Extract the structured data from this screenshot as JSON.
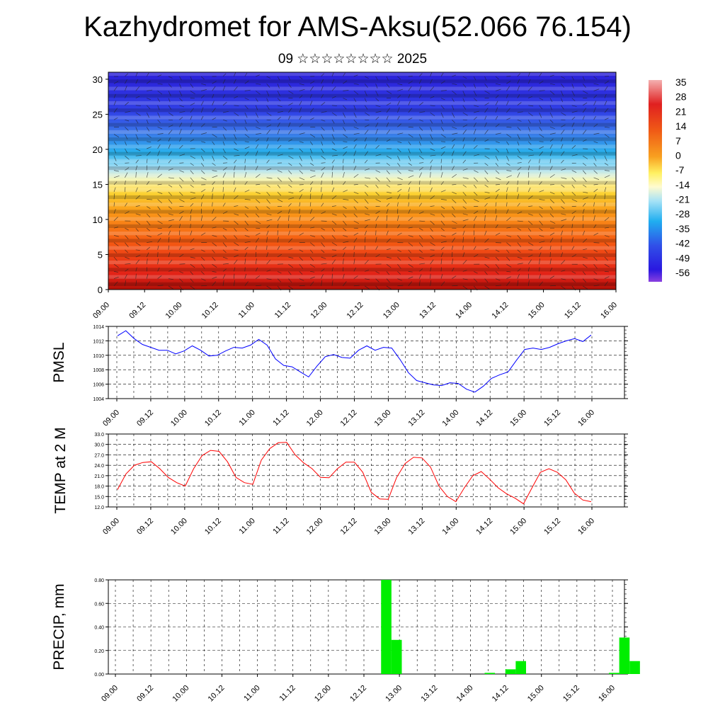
{
  "title": "Kazhydromet for AMS-Aksu(52.066 76.154)",
  "subtitle": "09 ☆☆☆☆☆☆☆☆ 2025",
  "chart_data": [
    {
      "type": "heatmap",
      "name": "cross-section",
      "x_tick_labels": [
        "09.00",
        "09.12",
        "10.00",
        "10.12",
        "11.00",
        "11.12",
        "12.00",
        "12.12",
        "13.00",
        "13.12",
        "14.00",
        "14.12",
        "15.00",
        "15.12",
        "16.00"
      ],
      "y_ticks": [
        0,
        5,
        10,
        15,
        20,
        25,
        30
      ],
      "ylim": [
        0,
        31
      ],
      "colorbar_labels": [
        "35",
        "28",
        "21",
        "14",
        "7",
        "0",
        "-7",
        "-14",
        "-21",
        "-28",
        "-35",
        "-42",
        "-49",
        "-56"
      ],
      "colors": {
        "warm": "#e8281b",
        "mid": "#fff45a",
        "cold": "#2a1ee0"
      },
      "overlay": "wind vectors"
    },
    {
      "type": "line",
      "ylabel": "PMSL",
      "ylim": [
        1004,
        1014
      ],
      "y_ticks": [
        "1004",
        "1006",
        "1008",
        "1010",
        "1012",
        "1014"
      ],
      "x_tick_labels": [
        "09.00",
        "09.12",
        "10.00",
        "10.12",
        "11.00",
        "11.12",
        "12.00",
        "12.12",
        "13.00",
        "13.12",
        "14.00",
        "14.12",
        "15.00",
        "15.12",
        "16.00"
      ],
      "color": "#0000ff",
      "values": [
        1012.7,
        1013.4,
        1012.3,
        1011.5,
        1011.1,
        1010.7,
        1010.7,
        1010.2,
        1010.6,
        1011.3,
        1010.7,
        1009.9,
        1010.0,
        1010.6,
        1011.1,
        1011.0,
        1011.4,
        1012.2,
        1011.4,
        1009.5,
        1008.6,
        1008.4,
        1007.7,
        1007.0,
        1008.5,
        1009.8,
        1010.1,
        1009.7,
        1009.6,
        1010.7,
        1011.3,
        1010.7,
        1011.1,
        1011.0,
        1009.4,
        1007.6,
        1006.5,
        1006.2,
        1005.9,
        1005.8,
        1006.2,
        1006.1,
        1005.3,
        1004.9,
        1005.7,
        1006.8,
        1007.3,
        1007.7,
        1009.3,
        1010.8,
        1011.0,
        1010.8,
        1011.1,
        1011.6,
        1012.0,
        1012.3,
        1011.9,
        1012.8
      ]
    },
    {
      "type": "line",
      "ylabel": "TEMP at 2 M",
      "ylim": [
        12.0,
        33.0
      ],
      "y_ticks": [
        "12.0",
        "15.0",
        "18.0",
        "21.0",
        "24.0",
        "27.0",
        "30.0",
        "33.0"
      ],
      "x_tick_labels": [
        "09.00",
        "09.12",
        "10.00",
        "10.12",
        "11.00",
        "11.12",
        "12.00",
        "12.12",
        "13.00",
        "13.12",
        "14.00",
        "14.12",
        "15.00",
        "15.12",
        "16.00"
      ],
      "color": "#ff0000",
      "values": [
        17.0,
        21.5,
        24.0,
        24.8,
        25.0,
        23.0,
        20.5,
        19.0,
        18.0,
        23.0,
        26.8,
        28.3,
        28.0,
        25.0,
        20.5,
        19.0,
        18.5,
        25.5,
        28.8,
        30.5,
        30.6,
        27.0,
        24.7,
        23.0,
        20.5,
        20.4,
        23.0,
        24.9,
        24.9,
        22.0,
        16.2,
        14.3,
        14.2,
        20.5,
        24.5,
        26.3,
        26.1,
        23.5,
        18.0,
        15.0,
        13.5,
        17.5,
        21.0,
        22.2,
        20.0,
        17.5,
        15.8,
        14.5,
        12.9,
        17.5,
        22.0,
        23.0,
        22.0,
        19.8,
        16.0,
        14.0,
        13.5
      ]
    },
    {
      "type": "bar",
      "ylabel": "PRECIP, mm",
      "ylim": [
        0,
        0.8
      ],
      "y_ticks": [
        "0.00",
        "0.20",
        "0.40",
        "0.60",
        "0.80"
      ],
      "x_tick_labels": [
        "09.00",
        "09.12",
        "10.00",
        "10.12",
        "11.00",
        "11.12",
        "12.00",
        "12.12",
        "13.00",
        "13.12",
        "14.00",
        "14.12",
        "15.00",
        "15.12",
        "16.00"
      ],
      "color": "#00ee00",
      "values": [
        0,
        0,
        0,
        0,
        0,
        0,
        0,
        0,
        0,
        0,
        0,
        0,
        0,
        0,
        0,
        0,
        0,
        0,
        0,
        0,
        0,
        0,
        0,
        0,
        0,
        0,
        0.8,
        0.29,
        0,
        0,
        0,
        0,
        0,
        0,
        0,
        0,
        0.01,
        0,
        0.04,
        0.11,
        0,
        0,
        0,
        0,
        0,
        0,
        0,
        0,
        0.01,
        0.31,
        0.11,
        0,
        0,
        0,
        0,
        0,
        0,
        0,
        0,
        0,
        0,
        0,
        0,
        0
      ]
    }
  ]
}
